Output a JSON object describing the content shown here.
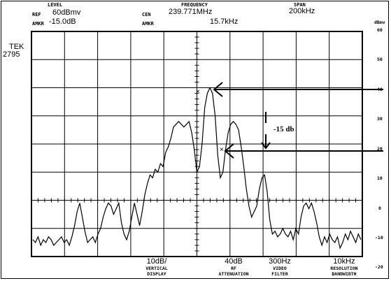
{
  "header": {
    "level_label": "LEVEL",
    "frequency_label": "FREQUENCY",
    "span_label": "SPAN",
    "ref_label": "REF",
    "ref_value": "60dBmv",
    "amkr_label": "AMKR",
    "amkr_value": "-15.0dB",
    "cen_label": "CEN",
    "cen_value": "239.771MHz",
    "amkr2_label": "AMKR",
    "amkr2_value": "15.7kHz",
    "span_value": "200kHz"
  },
  "instrument": {
    "brand": "TEK",
    "model": "2795"
  },
  "scale": {
    "unit_label": "dBmv",
    "ticks": [
      "60",
      "50",
      "40",
      "30",
      "20",
      "10",
      "0",
      "-10",
      "-20"
    ]
  },
  "annotation": {
    "delta_text": "-15 db"
  },
  "footer": [
    {
      "value": "10dB/",
      "line1": "VERTICAL",
      "line2": "DISPLAY"
    },
    {
      "value": "40dB",
      "line1": "RF",
      "line2": "ATTENUATION"
    },
    {
      "value": "300Hz",
      "line1": "VIDEO",
      "line2": "FILTER"
    },
    {
      "value": "10kHz",
      "line1": "RESOLUTION",
      "line2": "BANDWIDTH"
    }
  ],
  "trace": {
    "description": "spectrum trace",
    "points_db": [
      -14,
      -15,
      -13,
      -16,
      -14,
      -15,
      -13,
      -14,
      -16,
      -15,
      -14,
      -13,
      -15,
      -14,
      -16,
      -13,
      -9,
      -4,
      -1,
      -6,
      -11,
      -15,
      -14,
      -13,
      -15,
      -12,
      -10,
      -6,
      -3,
      -1,
      -2,
      -5,
      -3,
      -1,
      -8,
      -12,
      -14,
      -11,
      -6,
      -1,
      -5,
      -9,
      -4,
      2,
      6,
      9,
      8,
      11,
      10,
      13,
      12,
      17,
      19,
      22,
      26,
      27,
      28,
      27,
      26,
      27,
      28,
      24,
      18,
      10,
      12,
      20,
      33,
      38,
      40,
      38,
      30,
      16,
      8,
      10,
      18,
      24,
      27,
      28,
      27,
      25,
      19,
      12,
      4,
      -2,
      -6,
      -4,
      -2,
      4,
      8,
      9,
      3,
      -7,
      -12,
      -11,
      -13,
      -12,
      -10,
      -12,
      -13,
      -11,
      -14,
      -10,
      -12,
      -6,
      -2,
      -1,
      -3,
      -1,
      -4,
      -8,
      -13,
      -16,
      -13,
      -15,
      -12,
      -14,
      -15,
      -13,
      -17,
      -15,
      -12,
      -14,
      -11,
      -13,
      -15,
      -12,
      -14
    ]
  }
}
